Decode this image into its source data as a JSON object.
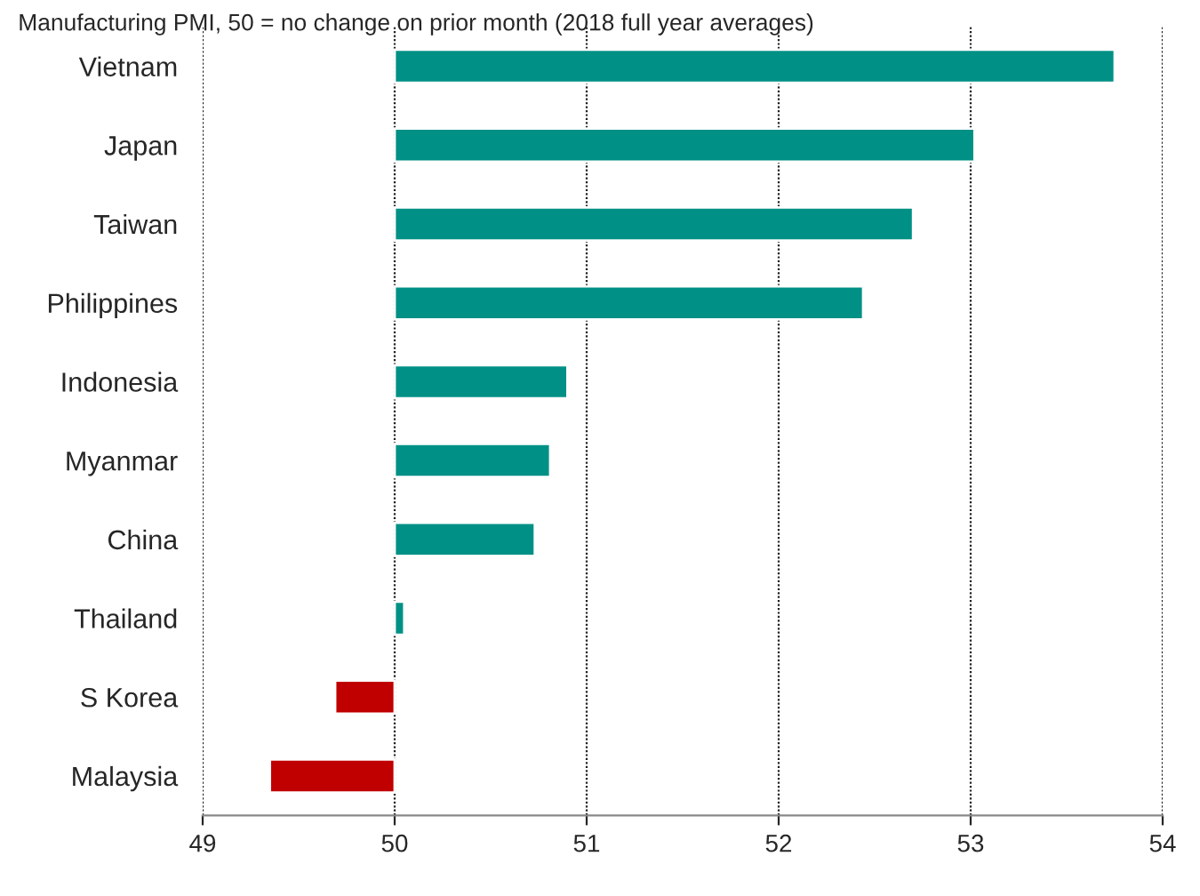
{
  "chart_data": {
    "type": "bar",
    "orientation": "horizontal",
    "subtitle": "Manufacturing PMI, 50 = no change on prior month (2018 full year averages)",
    "categories": [
      "Vietnam",
      "Japan",
      "Taiwan",
      "Philippines",
      "Indonesia",
      "Myanmar",
      "China",
      "Thailand",
      "S Korea",
      "Malaysia"
    ],
    "base": [
      50,
      50,
      50,
      50,
      50,
      50,
      50,
      50,
      50,
      50
    ],
    "values": [
      3.75,
      3.02,
      2.7,
      2.44,
      0.9,
      0.81,
      0.73,
      0.05,
      -0.31,
      -0.65
    ],
    "colors": [
      "#009085",
      "#009085",
      "#009085",
      "#009085",
      "#009085",
      "#009085",
      "#009085",
      "#009085",
      "#c00000",
      "#c00000"
    ],
    "xlim": [
      49,
      54
    ],
    "xticks": [
      49,
      50,
      51,
      52,
      53,
      54
    ],
    "grid": "x"
  }
}
